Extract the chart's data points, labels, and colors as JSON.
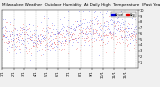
{
  "title": "Milwaukee Weather  Outdoor Humidity  At Daily High  Temperature  (Past Year)",
  "legend_blue": "Actual",
  "legend_red": "Avg",
  "background_color": "#f0f0f0",
  "plot_bg_color": "#ffffff",
  "grid_color": "#888888",
  "blue_color": "#0000dd",
  "red_color": "#dd0000",
  "ylim": [
    0,
    100
  ],
  "n_points": 365,
  "seed": 42,
  "blue_mean": 62,
  "blue_std": 15,
  "red_mean": 55,
  "red_std": 12,
  "n_dashed_lines": 12,
  "title_fontsize": 3.0,
  "tick_fontsize": 2.5,
  "fig_width": 1.6,
  "fig_height": 0.87,
  "dpi": 100
}
